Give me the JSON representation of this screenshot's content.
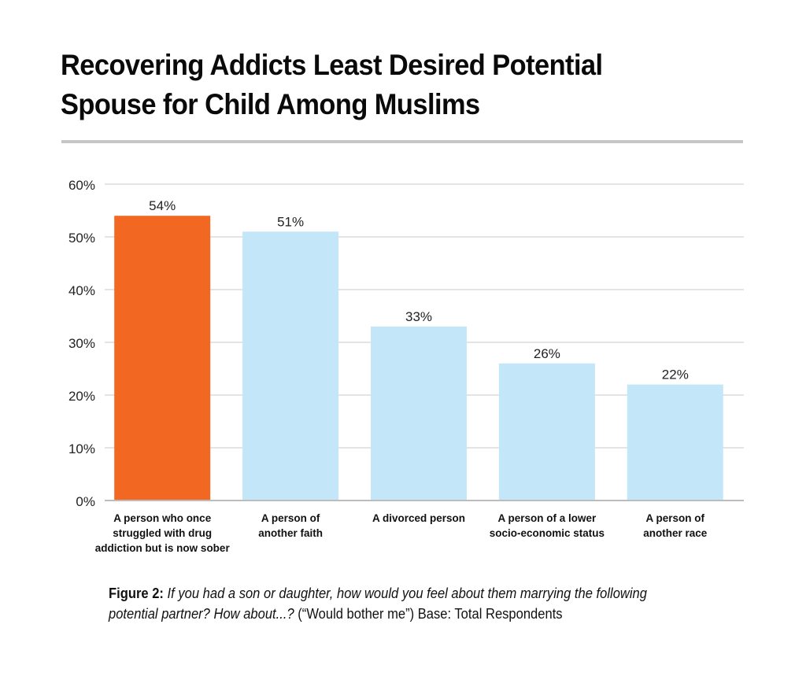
{
  "chart_data": {
    "type": "bar",
    "title": "Recovering Addicts Least Desired Potential Spouse for Child Among Muslims",
    "title_lines": [
      "Recovering Addicts Least Desired Potential",
      "Spouse for Child Among Muslims"
    ],
    "xlabel": "",
    "ylabel": "",
    "ylim": [
      0,
      60
    ],
    "yticks": [
      0,
      10,
      20,
      30,
      40,
      50,
      60
    ],
    "ytick_labels": [
      "0%",
      "10%",
      "20%",
      "30%",
      "40%",
      "50%",
      "60%"
    ],
    "grid": true,
    "categories": [
      "A person who once struggled with drug addiction but is now sober",
      "A person of another faith",
      "A divorced person",
      "A person of a lower socio-economic status",
      "A person of another race"
    ],
    "category_lines": [
      [
        "A person who once",
        "struggled with drug",
        "addiction but is now sober"
      ],
      [
        "A person of",
        "another faith"
      ],
      [
        "A divorced person"
      ],
      [
        "A person of a lower",
        "socio-economic status"
      ],
      [
        "A person of",
        "another race"
      ]
    ],
    "values": [
      54,
      51,
      33,
      26,
      22
    ],
    "data_labels": [
      "54%",
      "51%",
      "33%",
      "26%",
      "22%"
    ],
    "highlight_index": 0,
    "colors": {
      "highlight": "#f26722",
      "default": "#c4e6f9",
      "grid": "#d4d4d4",
      "axis": "#bcbcbc",
      "rule": "#c6c6c6"
    }
  },
  "caption": {
    "lead": "Figure 2:",
    "question": "If you had a son or daughter, how would you feel about them marrying the following potential partner? How about...?",
    "tail": "(“Would bother me”) Base: Total Respondents"
  }
}
